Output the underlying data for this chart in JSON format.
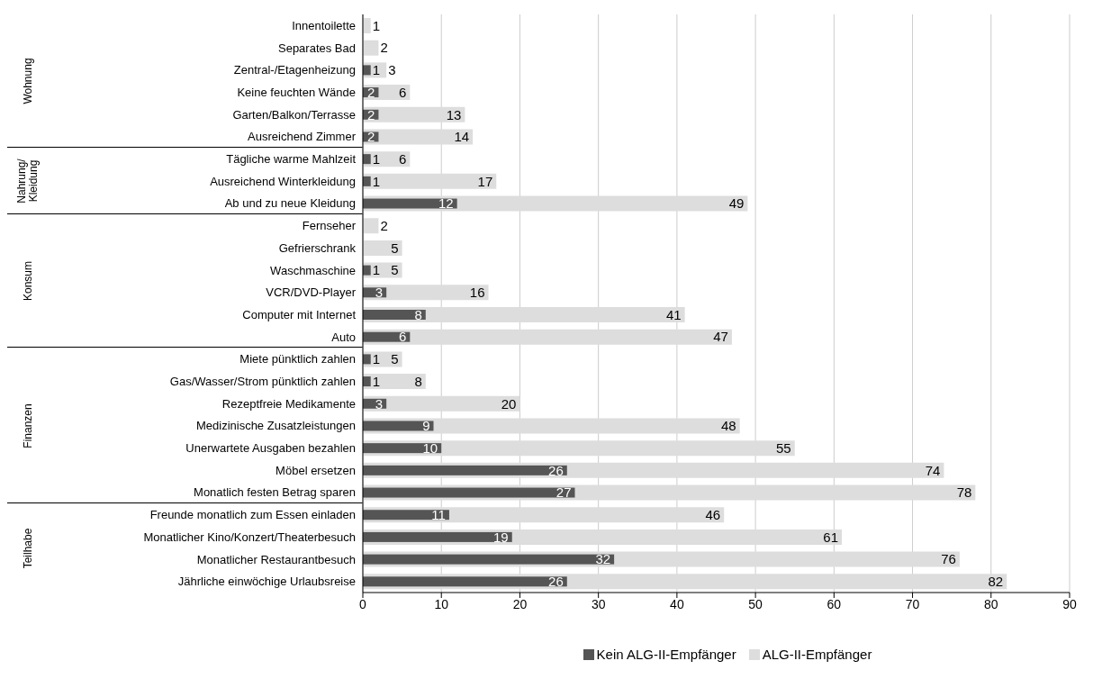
{
  "chart_data": {
    "type": "bar",
    "orientation": "horizontal",
    "categories": [
      "Innentoilette",
      "Separates Bad",
      "Zentral-/Etagenheizung",
      "Keine feuchten Wände",
      "Garten/Balkon/Terrasse",
      "Ausreichend Zimmer",
      "Tägliche warme Mahlzeit",
      "Ausreichend Winterkleidung",
      "Ab und zu neue Kleidung",
      "Fernseher",
      "Gefrierschrank",
      "Waschmaschine",
      "VCR/DVD-Player",
      "Computer mit Internet",
      "Auto",
      "Miete pünktlich zahlen",
      "Gas/Wasser/Strom pünktlich zahlen",
      "Rezeptfreie Medikamente",
      "Medizinische Zusatzleistungen",
      "Unerwartete Ausgaben bezahlen",
      "Möbel ersetzen",
      "Monatlich festen Betrag sparen",
      "Freunde monatlich zum Essen einladen",
      "Monatlicher Kino/Konzert/Theaterbesuch",
      "Monatlicher Restaurantbesuch",
      "Jährliche einwöchige Urlaubsreise"
    ],
    "series": [
      {
        "name": "Kein ALG-II-Empfänger",
        "color": "#555555",
        "values": [
          null,
          null,
          1,
          2,
          2,
          2,
          1,
          1,
          12,
          null,
          null,
          1,
          3,
          8,
          6,
          1,
          1,
          3,
          9,
          10,
          26,
          27,
          11,
          19,
          32,
          26
        ]
      },
      {
        "name": "ALG-II-Empfänger",
        "color": "#dddddd",
        "values": [
          1,
          2,
          3,
          6,
          13,
          14,
          6,
          17,
          49,
          2,
          5,
          5,
          16,
          41,
          47,
          5,
          8,
          20,
          48,
          55,
          74,
          78,
          46,
          61,
          76,
          82
        ]
      }
    ],
    "xlim": [
      0,
      90
    ],
    "xticks": [
      0,
      10,
      20,
      30,
      40,
      50,
      60,
      70,
      80,
      90
    ],
    "grid": "x",
    "legend": "bottom",
    "data_labels": true,
    "annotations": [
      "Wohnung",
      "Nahrung/ Kleidung",
      "Konsum",
      "Finanzen",
      "Teilhabe"
    ]
  }
}
